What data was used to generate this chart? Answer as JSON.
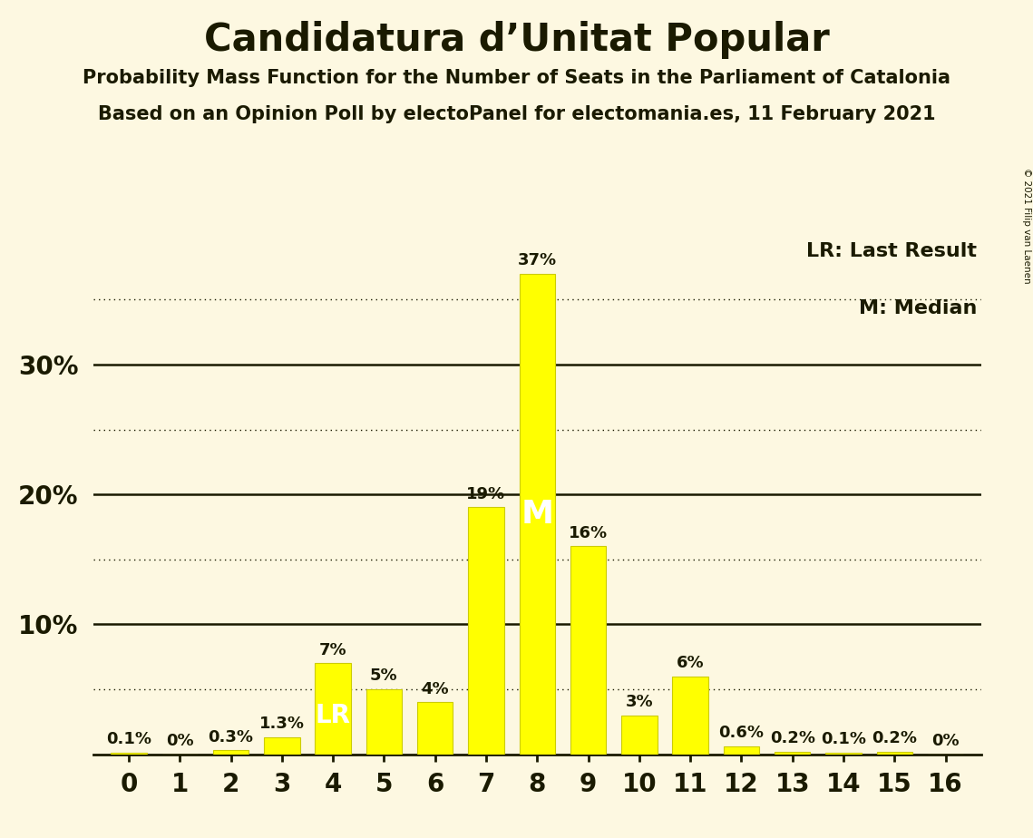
{
  "title": "Candidatura d’Unitat Popular",
  "subtitle1": "Probability Mass Function for the Number of Seats in the Parliament of Catalonia",
  "subtitle2": "Based on an Opinion Poll by electoPanel for electomania.es, 11 February 2021",
  "copyright": "© 2021 Filip van Laenen",
  "categories": [
    0,
    1,
    2,
    3,
    4,
    5,
    6,
    7,
    8,
    9,
    10,
    11,
    12,
    13,
    14,
    15,
    16
  ],
  "values": [
    0.1,
    0.0,
    0.3,
    1.3,
    7.0,
    5.0,
    4.0,
    19.0,
    37.0,
    16.0,
    3.0,
    6.0,
    0.6,
    0.2,
    0.1,
    0.2,
    0.0
  ],
  "bar_color": "#ffff00",
  "bar_edgecolor": "#cccc00",
  "background_color": "#fdf8e1",
  "text_color": "#1a1a00",
  "lr_seat": 4,
  "median_seat": 8,
  "lr_label": "LR",
  "median_label": "M",
  "legend_lr": "LR: Last Result",
  "legend_m": "M: Median",
  "ylim": [
    0,
    40
  ],
  "solid_yticks": [
    10,
    20,
    30
  ],
  "dotted_yticks": [
    5,
    15,
    25,
    35
  ],
  "value_labels": [
    "0.1%",
    "0%",
    "0.3%",
    "1.3%",
    "7%",
    "5%",
    "4%",
    "19%",
    "37%",
    "16%",
    "3%",
    "6%",
    "0.6%",
    "0.2%",
    "0.1%",
    "0.2%",
    "0%"
  ]
}
